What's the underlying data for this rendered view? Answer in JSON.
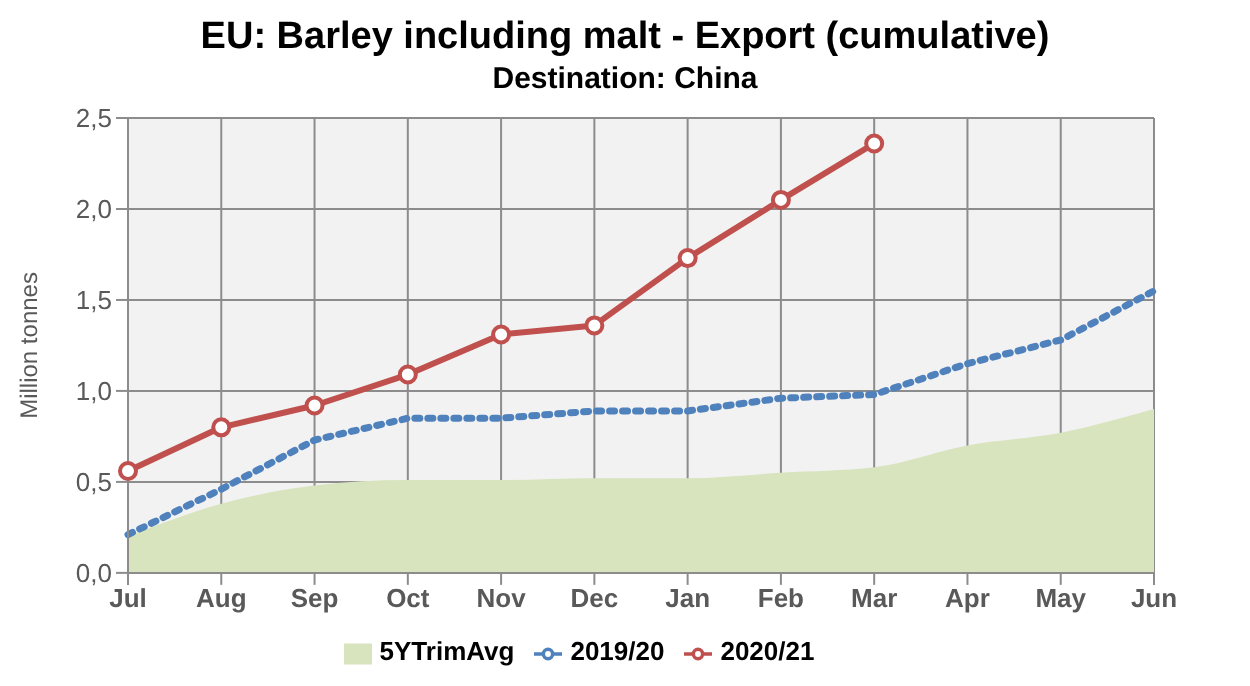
{
  "chart_data": {
    "type": "line",
    "title": "EU: Barley including malt - Export  (cumulative)",
    "subtitle": "Destination: China",
    "ylabel": "Million  tonnes",
    "categories": [
      "Jul",
      "Aug",
      "Sep",
      "Oct",
      "Nov",
      "Dec",
      "Jan",
      "Feb",
      "Mar",
      "Apr",
      "May",
      "Jun"
    ],
    "series": [
      {
        "name": "5YTrimAvg",
        "type": "area",
        "color": "#d7e4bd",
        "values": [
          0.2,
          0.38,
          0.48,
          0.51,
          0.51,
          0.52,
          0.52,
          0.55,
          0.58,
          0.7,
          0.77,
          0.9
        ]
      },
      {
        "name": "2019/20",
        "color": "#4f81bd",
        "line_style": "dotted",
        "marker": "none",
        "values": [
          0.21,
          0.46,
          0.73,
          0.85,
          0.85,
          0.89,
          0.89,
          0.96,
          0.98,
          1.15,
          1.28,
          1.55
        ]
      },
      {
        "name": "2020/21",
        "color": "#c0504d",
        "line_style": "solid",
        "marker": "circle",
        "values": [
          0.56,
          0.8,
          0.92,
          1.09,
          1.31,
          1.36,
          1.73,
          2.05,
          2.36,
          null,
          null,
          null
        ]
      }
    ],
    "ylim": [
      0,
      2.5
    ],
    "yticks": [
      {
        "value": 0,
        "label": "0,0"
      },
      {
        "value": 0.5,
        "label": "0,5"
      },
      {
        "value": 1,
        "label": "1,0"
      },
      {
        "value": 1.5,
        "label": "1,5"
      },
      {
        "value": 2,
        "label": "2,0"
      },
      {
        "value": 2.5,
        "label": "2,5"
      }
    ],
    "grid": true,
    "legend": "bottom"
  }
}
